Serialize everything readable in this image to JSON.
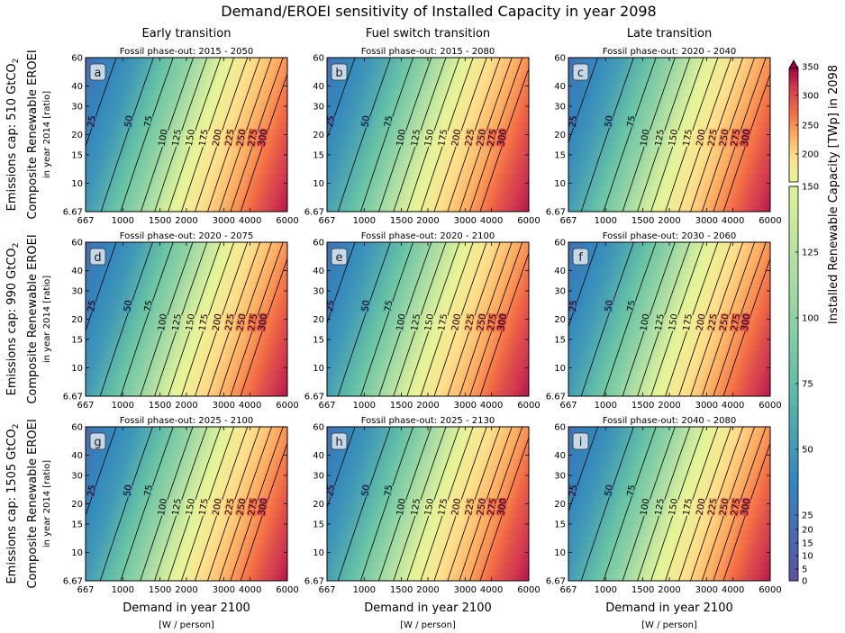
{
  "title": "Demand/EROEI sensitivity of Installed Capacity in year 2098",
  "column_titles": [
    "Early transition",
    "Fuel switch transition",
    "Late transition"
  ],
  "row_titles": [
    {
      "main": "Emissions cap: 510 GtCO",
      "sub": "2"
    },
    {
      "main": "Emissions cap: 990 GtCO",
      "sub": "2"
    },
    {
      "main": "Emissions cap: 1505 GtCO",
      "sub": "2"
    }
  ],
  "ylabel_main": "Composite Renewable EROEI",
  "ylabel_sub": "in year 2014 [ratio]",
  "xlabel_main": "Demand in year 2100",
  "xlabel_sub": "[W / person]",
  "colorbar_label": "Installed Renewable Capacity [TWp] in 2098",
  "colormap": [
    "#5e4fa2",
    "#3288bd",
    "#66c2a5",
    "#abdda4",
    "#e6f598",
    "#fee08b",
    "#fdae61",
    "#f46d43",
    "#d53e4f",
    "#9e0142"
  ],
  "chart_data": {
    "type": "contour",
    "x_ticks": [
      "667",
      "1000",
      "1500",
      "2000",
      "3000",
      "4000",
      "6000"
    ],
    "x_tick_values": [
      667,
      1000,
      1500,
      2000,
      3000,
      4000,
      6000
    ],
    "x_range": [
      667,
      6000
    ],
    "x_scale": "log",
    "y_ticks": [
      "6.67",
      "10",
      "15",
      "20",
      "30",
      "40",
      "60"
    ],
    "y_tick_values": [
      6.67,
      10,
      15,
      20,
      30,
      40,
      60
    ],
    "y_range": [
      6.67,
      60
    ],
    "y_scale": "log",
    "contour_levels": [
      25,
      50,
      75,
      100,
      125,
      150,
      175,
      200,
      225,
      250,
      275,
      300
    ],
    "colorbar_ticks": [
      0,
      5,
      10,
      15,
      20,
      25,
      50,
      75,
      100,
      125,
      150,
      200,
      250,
      300,
      350
    ],
    "colorbar_range": [
      0,
      350
    ],
    "panels": [
      {
        "letter": "a",
        "subtitle": "Fossil phase-out: 2015 - 2050",
        "row": 0,
        "col": 0,
        "level_x_at_20": [
          700,
          1050,
          1300,
          1620,
          1880,
          2180,
          2520,
          2920,
          3350,
          3800,
          4300,
          4800
        ]
      },
      {
        "letter": "b",
        "subtitle": "Fossil phase-out: 2015 - 2080",
        "row": 0,
        "col": 1,
        "level_x_at_20": [
          680,
          1000,
          1280,
          1560,
          1830,
          2120,
          2460,
          2850,
          3300,
          3750,
          4200,
          4700
        ]
      },
      {
        "letter": "c",
        "subtitle": "Fossil phase-out: 2020 - 2040",
        "row": 0,
        "col": 2,
        "level_x_at_20": [
          690,
          1020,
          1300,
          1600,
          1880,
          2180,
          2550,
          2950,
          3350,
          3800,
          4300,
          4800
        ]
      },
      {
        "letter": "d",
        "subtitle": "Fossil phase-out: 2020 - 2075",
        "row": 1,
        "col": 0,
        "level_x_at_20": [
          700,
          1040,
          1300,
          1610,
          1880,
          2180,
          2520,
          2920,
          3350,
          3800,
          4300,
          4800
        ]
      },
      {
        "letter": "e",
        "subtitle": "Fossil phase-out: 2020 - 2100",
        "row": 1,
        "col": 1,
        "level_x_at_20": [
          680,
          1000,
          1280,
          1560,
          1830,
          2120,
          2460,
          2850,
          3300,
          3750,
          4200,
          4700
        ]
      },
      {
        "letter": "f",
        "subtitle": "Fossil phase-out: 2030 - 2060",
        "row": 1,
        "col": 2,
        "level_x_at_20": [
          690,
          1020,
          1300,
          1600,
          1880,
          2180,
          2550,
          2950,
          3350,
          3800,
          4300,
          4800
        ]
      },
      {
        "letter": "g",
        "subtitle": "Fossil phase-out: 2025 - 2100",
        "row": 2,
        "col": 0,
        "level_x_at_20": [
          700,
          1040,
          1300,
          1610,
          1880,
          2180,
          2520,
          2920,
          3350,
          3800,
          4300,
          4800
        ]
      },
      {
        "letter": "h",
        "subtitle": "Fossil phase-out: 2025 - 2130",
        "row": 2,
        "col": 1,
        "level_x_at_20": [
          680,
          1000,
          1280,
          1560,
          1830,
          2120,
          2460,
          2850,
          3300,
          3750,
          4200,
          4700
        ]
      },
      {
        "letter": "i",
        "subtitle": "Fossil phase-out: 2040 - 2080",
        "row": 2,
        "col": 2,
        "level_x_at_20": [
          690,
          1020,
          1300,
          1600,
          1880,
          2180,
          2550,
          2950,
          3350,
          3800,
          4300,
          4800
        ]
      }
    ]
  }
}
